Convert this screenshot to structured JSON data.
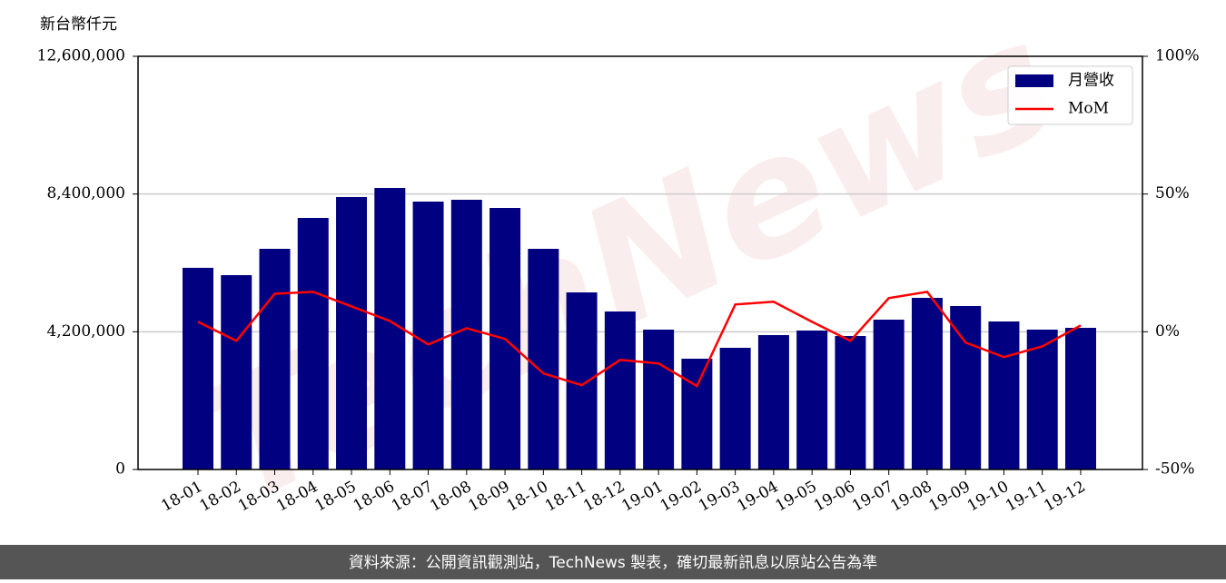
{
  "chart_data": {
    "type": "bar-line",
    "y_axis_label": "新台幣仟元",
    "watermark": "TechNews",
    "footer": "資料來源：公開資訊觀測站，TechNews 製表，確切最新訊息以原站公告為準",
    "categories": [
      "18-01",
      "18-02",
      "18-03",
      "18-04",
      "18-05",
      "18-06",
      "18-07",
      "18-08",
      "18-09",
      "18-10",
      "18-11",
      "18-12",
      "19-01",
      "19-02",
      "19-03",
      "19-04",
      "19-05",
      "19-06",
      "19-07",
      "19-08",
      "19-09",
      "19-10",
      "19-11",
      "19-12"
    ],
    "series": [
      {
        "name": "月營收",
        "type": "bar",
        "color": "#000080",
        "values": [
          6150000,
          5926000,
          6729000,
          7671000,
          8308000,
          8585000,
          8169000,
          8225000,
          7975000,
          6729000,
          5400000,
          4818000,
          4265000,
          3378000,
          3711000,
          4098000,
          4237000,
          4071000,
          4569000,
          5234000,
          4985000,
          4514000,
          4265000,
          4320000
        ]
      },
      {
        "name": "MoM",
        "type": "line",
        "axis": "y2",
        "color": "#ff0000",
        "values": [
          3.6,
          -3.3,
          13.8,
          14.5,
          9.2,
          3.9,
          -4.6,
          1.3,
          -2.6,
          -15.1,
          -19.4,
          -10.2,
          -11.5,
          -19.7,
          9.9,
          10.9,
          3.6,
          -3.3,
          12.2,
          14.5,
          -3.9,
          -9.2,
          -5.3,
          2.3
        ]
      }
    ],
    "ylim": [
      0,
      12600000
    ],
    "yticks": [
      0,
      {
        "value": 4200000,
        "label": "4,200,000"
      },
      {
        "value": 8400000,
        "label": "8,400,000"
      },
      {
        "value": 12600000,
        "label": "12,600,000"
      }
    ],
    "y2lim": [
      -50,
      100
    ],
    "y2ticks": [
      {
        "value": -50,
        "label": "-50%"
      },
      {
        "value": 0,
        "label": "0%"
      },
      {
        "value": 50,
        "label": "50%"
      },
      {
        "value": 100,
        "label": "100%"
      }
    ],
    "grid": true,
    "legend": "upper right"
  }
}
